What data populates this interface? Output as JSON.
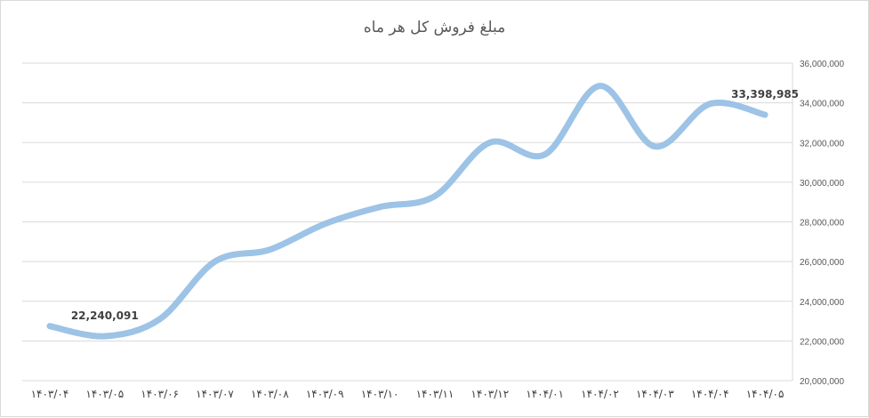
{
  "chart_data": {
    "type": "line",
    "title": "مبلغ فروش کل هر ماه",
    "categories": [
      "۱۴۰۳/۰۴",
      "۱۴۰۳/۰۵",
      "۱۴۰۳/۰۶",
      "۱۴۰۳/۰۷",
      "۱۴۰۳/۰۸",
      "۱۴۰۳/۰۹",
      "۱۴۰۳/۱۰",
      "۱۴۰۳/۱۱",
      "۱۴۰۳/۱۲",
      "۱۴۰۴/۰۱",
      "۱۴۰۴/۰۲",
      "۱۴۰۴/۰۳",
      "۱۴۰۴/۰۴",
      "۱۴۰۴/۰۵"
    ],
    "series": [
      {
        "values": [
          22750000,
          22240091,
          23100000,
          26000000,
          26600000,
          27900000,
          28750000,
          29300000,
          32000000,
          31400000,
          34850000,
          31800000,
          33950000,
          33398985
        ],
        "color": "#9dc3e6"
      }
    ],
    "data_labels": [
      {
        "index": 1,
        "text": "22,240,091"
      },
      {
        "index": 13,
        "text": "33,398,985"
      }
    ],
    "yaxis": {
      "position": "right",
      "ylim": [
        20000000,
        36000000
      ],
      "ticks": [
        "20,000,000",
        "22,000,000",
        "24,000,000",
        "26,000,000",
        "28,000,000",
        "30,000,000",
        "32,000,000",
        "34,000,000",
        "36,000,000"
      ]
    },
    "grid": true,
    "legend": "none"
  }
}
